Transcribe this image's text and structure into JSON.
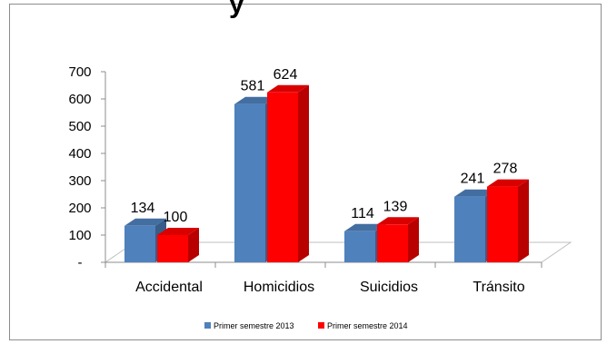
{
  "chart_data": {
    "type": "bar",
    "title": "y",
    "categories": [
      "Accidental",
      "Homicidios",
      "Suicidios",
      "Tránsito"
    ],
    "series": [
      {
        "name": "Primer semestre 2013",
        "values": [
          134,
          581,
          114,
          241
        ],
        "color": "#4f81bd"
      },
      {
        "name": "Primer semestre 2014",
        "values": [
          100,
          624,
          139,
          278
        ],
        "color": "#ff0000"
      }
    ],
    "y_ticks": [
      "-",
      "100",
      "200",
      "300",
      "400",
      "500",
      "600",
      "700"
    ],
    "ylim": [
      0,
      700
    ],
    "grid": false,
    "legend": "bottom",
    "three_d": true
  }
}
